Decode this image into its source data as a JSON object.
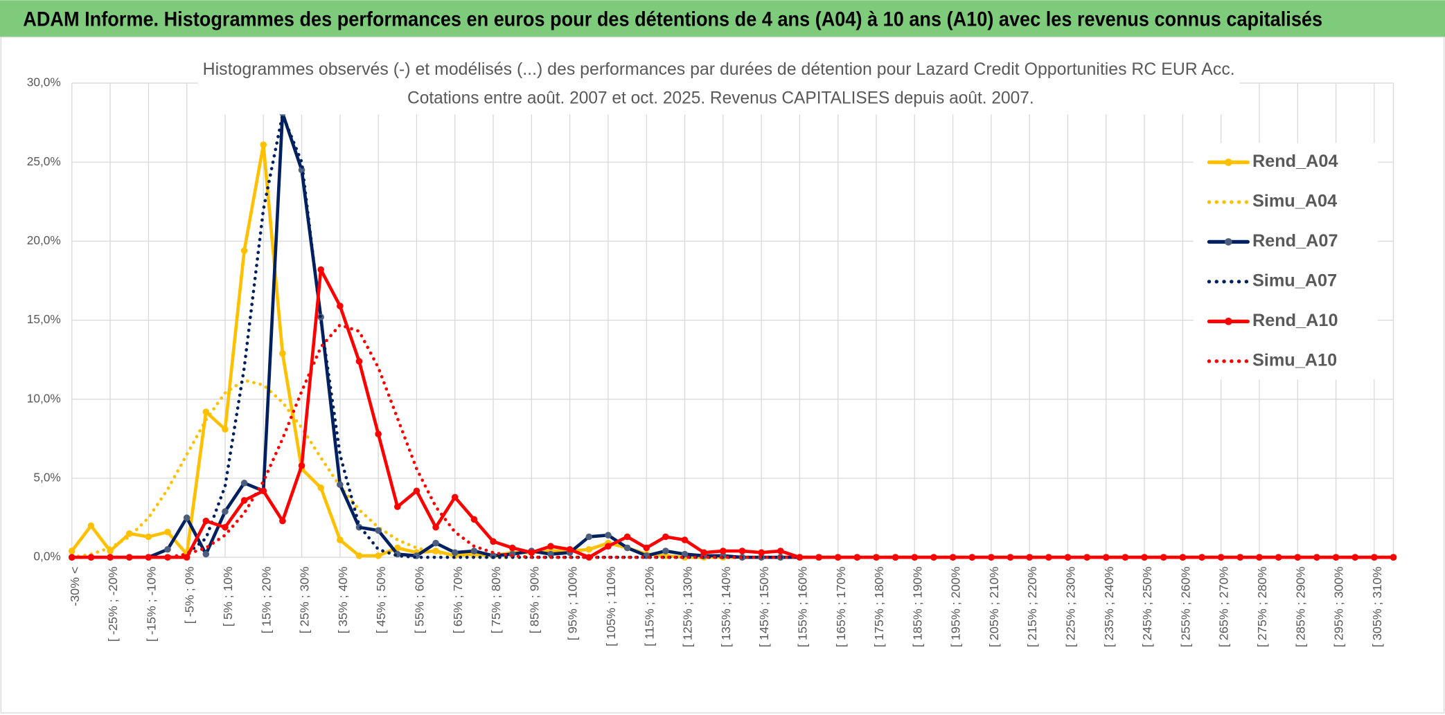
{
  "chart_data": {
    "type": "line",
    "title": "ADAM Informe. Histogrammes des performances en euros pour des détentions de 4 ans (A04) à 10 ans (A10) avec les revenus connus capitalisés",
    "subtitle": [
      "Histogrammes observés (-) et modélisés (...) des performances par durées de détention pour Lazard Credit Opportunities RC EUR Acc.",
      "Cotations entre août. 2007 et oct. 2025. Revenus CAPITALISES depuis août. 2007."
    ],
    "categories": [
      "-30% <",
      null,
      "[ -25% ; -20%",
      null,
      "[ -15% ; -10%",
      null,
      "[ -5% ; 0%",
      null,
      "[ 5% ; 10%",
      null,
      "[ 15% ; 20%",
      null,
      "[ 25% ; 30%",
      null,
      "[ 35% ; 40%",
      null,
      "[ 45% ; 50%",
      null,
      "[ 55% ; 60%",
      null,
      "[ 65% ; 70%",
      null,
      "[ 75% ; 80%",
      null,
      "[ 85% ; 90%",
      null,
      "[ 95% ; 100%",
      null,
      "[ 105% ; 110%",
      null,
      "[ 115% ; 120%",
      null,
      "[ 125% ; 130%",
      null,
      "[ 135% ; 140%",
      null,
      "[ 145% ; 150%",
      null,
      "[ 155% ; 160%",
      null,
      "[ 165% ; 170%",
      null,
      "[ 175% ; 180%",
      null,
      "[ 185% ; 190%",
      null,
      "[ 195% ; 200%",
      null,
      "[ 205% ; 210%",
      null,
      "[ 215% ; 220%",
      null,
      "[ 225% ; 230%",
      null,
      "[ 235% ; 240%",
      null,
      "[ 245% ; 250%",
      null,
      "[ 255% ; 260%",
      null,
      "[ 265% ; 270%",
      null,
      "[ 275% ; 280%",
      null,
      "[ 285% ; 290%",
      null,
      "[ 295% ; 300%",
      null,
      "[ 305% ; 310%",
      null
    ],
    "ylim": [
      0,
      30
    ],
    "yticks": [
      {
        "value": 0,
        "label": "0,0%"
      },
      {
        "value": 5,
        "label": "5,0%"
      },
      {
        "value": 10,
        "label": "10,0%"
      },
      {
        "value": 15,
        "label": "15,0%"
      },
      {
        "value": 20,
        "label": "20,0%"
      },
      {
        "value": 25,
        "label": "25,0%"
      },
      {
        "value": 30,
        "label": "30,0%"
      }
    ],
    "grid": true,
    "legend": "right",
    "series": [
      {
        "name": "Rend_A04",
        "color": "#FFC000",
        "style": "solid",
        "markers": true,
        "values": [
          0.4,
          2.0,
          0.4,
          1.5,
          1.3,
          1.6,
          0.2,
          9.2,
          8.1,
          19.4,
          26.1,
          12.9,
          5.6,
          4.4,
          1.1,
          0.1,
          0.1,
          0.6,
          0.3,
          0.4,
          0.1,
          0.2,
          0.1,
          0.3,
          0.3,
          0.4,
          0.4,
          0.5,
          0.9,
          0.6,
          0.2,
          0.1,
          0,
          0,
          0,
          0,
          0,
          0,
          0,
          0,
          0,
          0,
          0,
          0,
          0,
          0,
          0,
          0,
          0,
          0,
          0,
          0,
          0,
          0,
          0,
          0,
          0,
          0,
          0,
          0,
          0,
          0,
          0,
          0,
          0,
          0,
          0,
          0,
          0,
          0
        ]
      },
      {
        "name": "Simu_A04",
        "color": "#FFC000",
        "style": "dotted",
        "markers": false,
        "values": [
          0,
          0.2,
          0.6,
          1.3,
          2.5,
          4.3,
          6.5,
          8.7,
          10.4,
          11.2,
          10.9,
          9.8,
          8.2,
          6.3,
          4.5,
          3.0,
          1.9,
          1.1,
          0.6,
          0.3,
          0.15,
          0.05,
          0,
          0,
          0,
          0,
          0,
          0,
          0,
          0,
          0,
          0,
          0,
          0,
          0,
          0,
          0,
          0,
          0,
          0,
          0,
          0,
          0,
          0,
          0,
          0,
          0,
          0,
          0,
          0,
          0,
          0,
          0,
          0,
          0,
          0,
          0,
          0,
          0,
          0,
          0,
          0,
          0,
          0,
          0,
          0,
          0,
          0,
          0,
          0
        ]
      },
      {
        "name": "Rend_A07",
        "color": "#002060",
        "marker_color": "#4d5f7f",
        "style": "solid",
        "markers": true,
        "values": [
          0,
          0,
          0,
          0,
          0,
          0.5,
          2.5,
          0.2,
          2.9,
          4.7,
          4.2,
          28.1,
          24.5,
          15.2,
          4.6,
          1.9,
          1.7,
          0.2,
          0.1,
          0.9,
          0.3,
          0.4,
          0.1,
          0.2,
          0.4,
          0.2,
          0.3,
          1.3,
          1.4,
          0.6,
          0.1,
          0.4,
          0.2,
          0.1,
          0.1,
          0,
          0,
          0,
          0,
          0,
          0,
          0,
          0,
          0,
          0,
          0,
          0,
          0,
          0,
          0,
          0,
          0,
          0,
          0,
          0,
          0,
          0,
          0,
          0,
          0,
          0,
          0,
          0,
          0,
          0,
          0,
          0,
          0,
          0,
          0
        ]
      },
      {
        "name": "Simu_A07",
        "color": "#002060",
        "style": "dotted",
        "markers": false,
        "values": [
          0,
          0,
          0,
          0,
          0,
          0,
          0.2,
          1.2,
          4.5,
          12,
          22,
          28,
          25,
          15,
          6.5,
          2.0,
          0.5,
          0.1,
          0,
          0,
          0,
          0,
          0,
          0,
          0,
          0,
          0,
          0,
          0,
          0,
          0,
          0,
          0,
          0,
          0,
          0,
          0,
          0,
          0,
          0,
          0,
          0,
          0,
          0,
          0,
          0,
          0,
          0,
          0,
          0,
          0,
          0,
          0,
          0,
          0,
          0,
          0,
          0,
          0,
          0,
          0,
          0,
          0,
          0,
          0,
          0,
          0,
          0,
          0,
          0
        ]
      },
      {
        "name": "Rend_A10",
        "color": "#FF0000",
        "style": "solid",
        "markers": true,
        "values": [
          0,
          0,
          0,
          0,
          0,
          0,
          0,
          2.3,
          1.9,
          3.6,
          4.2,
          2.3,
          5.8,
          18.2,
          15.9,
          12.4,
          7.8,
          3.2,
          4.2,
          1.9,
          3.8,
          2.4,
          1.0,
          0.6,
          0.3,
          0.7,
          0.5,
          0,
          0.7,
          1.3,
          0.6,
          1.3,
          1.1,
          0.3,
          0.4,
          0.4,
          0.3,
          0.4,
          0,
          0,
          0,
          0,
          0,
          0,
          0,
          0,
          0,
          0,
          0,
          0,
          0,
          0,
          0,
          0,
          0,
          0,
          0,
          0,
          0,
          0,
          0,
          0,
          0,
          0,
          0,
          0,
          0,
          0,
          0,
          0
        ]
      },
      {
        "name": "Simu_A10",
        "color": "#FF0000",
        "style": "dotted",
        "markers": false,
        "values": [
          0,
          0,
          0,
          0,
          0,
          0,
          0.2,
          0.6,
          1.4,
          2.8,
          4.8,
          7.5,
          10.5,
          13.3,
          14.7,
          14.3,
          12.0,
          8.8,
          5.6,
          3.2,
          1.6,
          0.7,
          0.3,
          0.1,
          0,
          0,
          0,
          0,
          0,
          0,
          0,
          0,
          0,
          0,
          0,
          0,
          0,
          0,
          0,
          0,
          0,
          0,
          0,
          0,
          0,
          0,
          0,
          0,
          0,
          0,
          0,
          0,
          0,
          0,
          0,
          0,
          0,
          0,
          0,
          0,
          0,
          0,
          0,
          0,
          0,
          0,
          0,
          0,
          0,
          0
        ]
      }
    ]
  }
}
